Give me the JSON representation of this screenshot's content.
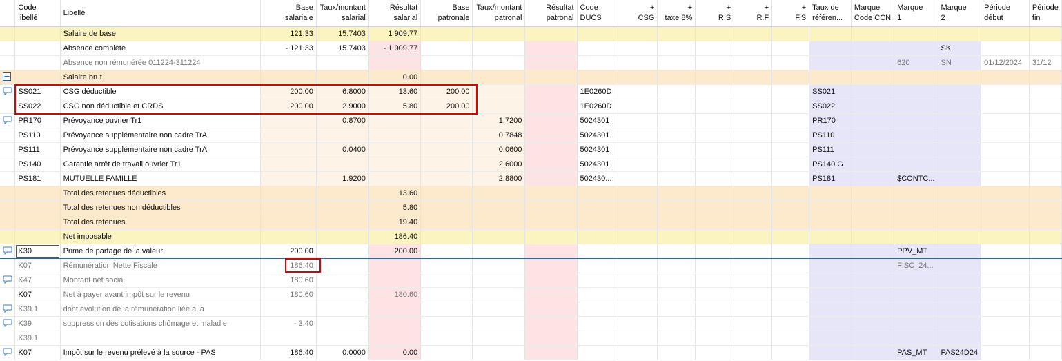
{
  "header": {
    "columns": [
      [
        "Code",
        "libellé"
      ],
      [
        "Libellé"
      ],
      [
        "Base",
        "salariale"
      ],
      [
        "Taux/montant",
        "salarial"
      ],
      [
        "Résultat",
        "salarial"
      ],
      [
        "Base",
        "patronale"
      ],
      [
        "Taux/montant",
        "patronal"
      ],
      [
        "Résultat",
        "patronal"
      ],
      [
        "Code",
        "DUCS"
      ],
      [
        "+",
        "CSG"
      ],
      [
        "+",
        "taxe 8%"
      ],
      [
        "+",
        "R.S"
      ],
      [
        "+",
        "R.F"
      ],
      [
        "+",
        "F.S"
      ],
      [
        "Taux de",
        "référen..."
      ],
      [
        "Marque",
        "Code CCN"
      ],
      [
        "Marque",
        "1"
      ],
      [
        "Marque",
        "2"
      ],
      [
        "Période",
        "début"
      ],
      [
        "Période",
        "fin"
      ]
    ]
  },
  "table": {
    "rows": [
      [
        null,
        "Salaire de base",
        "121.33",
        "15.7403",
        "1 909.77",
        null,
        null,
        null,
        null,
        null,
        null,
        null,
        null,
        null,
        null,
        null,
        null,
        null,
        null,
        null
      ],
      [
        null,
        "Absence complète",
        "- 121.33",
        "15.7403",
        "- 1 909.77",
        null,
        null,
        null,
        null,
        null,
        null,
        null,
        null,
        null,
        null,
        null,
        null,
        "SK",
        null,
        null
      ],
      [
        null,
        "Absence non rémunérée 011224-311224",
        null,
        null,
        null,
        null,
        null,
        null,
        null,
        null,
        null,
        null,
        null,
        null,
        null,
        null,
        "620",
        "SN",
        "01/12/2024",
        "31/12"
      ],
      [
        null,
        "Salaire brut",
        null,
        null,
        "0.00",
        null,
        null,
        null,
        null,
        null,
        null,
        null,
        null,
        null,
        null,
        null,
        null,
        null,
        null,
        null
      ],
      [
        "SS021",
        "CSG déductible",
        "200.00",
        "6.8000",
        "13.60",
        "200.00",
        null,
        null,
        "1E0260D",
        null,
        null,
        null,
        null,
        null,
        "SS021",
        null,
        null,
        null,
        null,
        null
      ],
      [
        "SS022",
        "CSG non déductible et CRDS",
        "200.00",
        "2.9000",
        "5.80",
        "200.00",
        null,
        null,
        "1E0260D",
        null,
        null,
        null,
        null,
        null,
        "SS022",
        null,
        null,
        null,
        null,
        null
      ],
      [
        "PR170",
        "Prévoyance ouvrier Tr1",
        null,
        "0.8700",
        null,
        null,
        "1.7200",
        null,
        "5024301",
        null,
        null,
        null,
        null,
        null,
        "PR170",
        null,
        null,
        null,
        null,
        null
      ],
      [
        "PS110",
        "Prévoyance supplémentaire non cadre TrA",
        null,
        null,
        null,
        null,
        "0.7848",
        null,
        "5024301",
        null,
        null,
        null,
        null,
        null,
        "PS110",
        null,
        null,
        null,
        null,
        null
      ],
      [
        "PS111",
        "Prévoyance supplémentaire non cadre TrA",
        null,
        "0.0400",
        null,
        null,
        "0.0600",
        null,
        "5024301",
        null,
        null,
        null,
        null,
        null,
        "PS111",
        null,
        null,
        null,
        null,
        null
      ],
      [
        "PS140",
        "Garantie arrêt de travail ouvrier Tr1",
        null,
        null,
        null,
        null,
        "2.6000",
        null,
        "5024301",
        null,
        null,
        null,
        null,
        null,
        "PS140.G",
        null,
        null,
        null,
        null,
        null
      ],
      [
        "PS181",
        "MUTUELLE FAMILLE",
        null,
        "1.9200",
        null,
        null,
        "2.8800",
        null,
        "502430...",
        null,
        null,
        null,
        null,
        null,
        "PS181",
        null,
        "$CONTC...",
        null,
        null,
        null
      ],
      [
        null,
        "Total des retenues déductibles",
        null,
        null,
        "13.60",
        null,
        null,
        null,
        null,
        null,
        null,
        null,
        null,
        null,
        null,
        null,
        null,
        null,
        null,
        null
      ],
      [
        null,
        "Total des retenues non déductibles",
        null,
        null,
        "5.80",
        null,
        null,
        null,
        null,
        null,
        null,
        null,
        null,
        null,
        null,
        null,
        null,
        null,
        null,
        null
      ],
      [
        null,
        "Total des retenues",
        null,
        null,
        "19.40",
        null,
        null,
        null,
        null,
        null,
        null,
        null,
        null,
        null,
        null,
        null,
        null,
        null,
        null,
        null
      ],
      [
        null,
        "Net imposable",
        null,
        null,
        "186.40",
        null,
        null,
        null,
        null,
        null,
        null,
        null,
        null,
        null,
        null,
        null,
        null,
        null,
        null,
        null
      ],
      [
        "K30",
        "Prime de partage de la valeur",
        "200.00",
        null,
        "200.00",
        null,
        null,
        null,
        null,
        null,
        null,
        null,
        null,
        null,
        null,
        null,
        "PPV_MT",
        null,
        null,
        null
      ],
      [
        "K07",
        "Rémunération Nette Fiscale",
        "186.40",
        null,
        null,
        null,
        null,
        null,
        null,
        null,
        null,
        null,
        null,
        null,
        null,
        null,
        "FISC_24...",
        null,
        null,
        null
      ],
      [
        "K47",
        "Montant net social",
        "180.60",
        null,
        null,
        null,
        null,
        null,
        null,
        null,
        null,
        null,
        null,
        null,
        null,
        null,
        null,
        null,
        null,
        null
      ],
      [
        "K07",
        "Net à payer avant impôt sur le revenu",
        "180.60",
        null,
        "180.60",
        null,
        null,
        null,
        null,
        null,
        null,
        null,
        null,
        null,
        null,
        null,
        null,
        null,
        null,
        null
      ],
      [
        "K39.1",
        "dont évolution de la rémunération liée à la",
        null,
        null,
        null,
        null,
        null,
        null,
        null,
        null,
        null,
        null,
        null,
        null,
        null,
        null,
        null,
        null,
        null,
        null
      ],
      [
        "K39",
        "suppression des cotisations chômage et maladie",
        "- 3.40",
        null,
        null,
        null,
        null,
        null,
        null,
        null,
        null,
        null,
        null,
        null,
        null,
        null,
        null,
        null,
        null,
        null
      ],
      [
        "K39.1",
        null,
        null,
        null,
        null,
        null,
        null,
        null,
        null,
        null,
        null,
        null,
        null,
        null,
        null,
        null,
        null,
        null,
        null,
        null
      ],
      [
        "K07",
        "Impôt sur le revenu prélevé à la source - PAS",
        "186.40",
        "0.0000",
        "0.00",
        null,
        null,
        null,
        null,
        null,
        null,
        null,
        null,
        null,
        null,
        null,
        "PAS_MT",
        "PAS24D24",
        null,
        null
      ]
    ]
  }
}
